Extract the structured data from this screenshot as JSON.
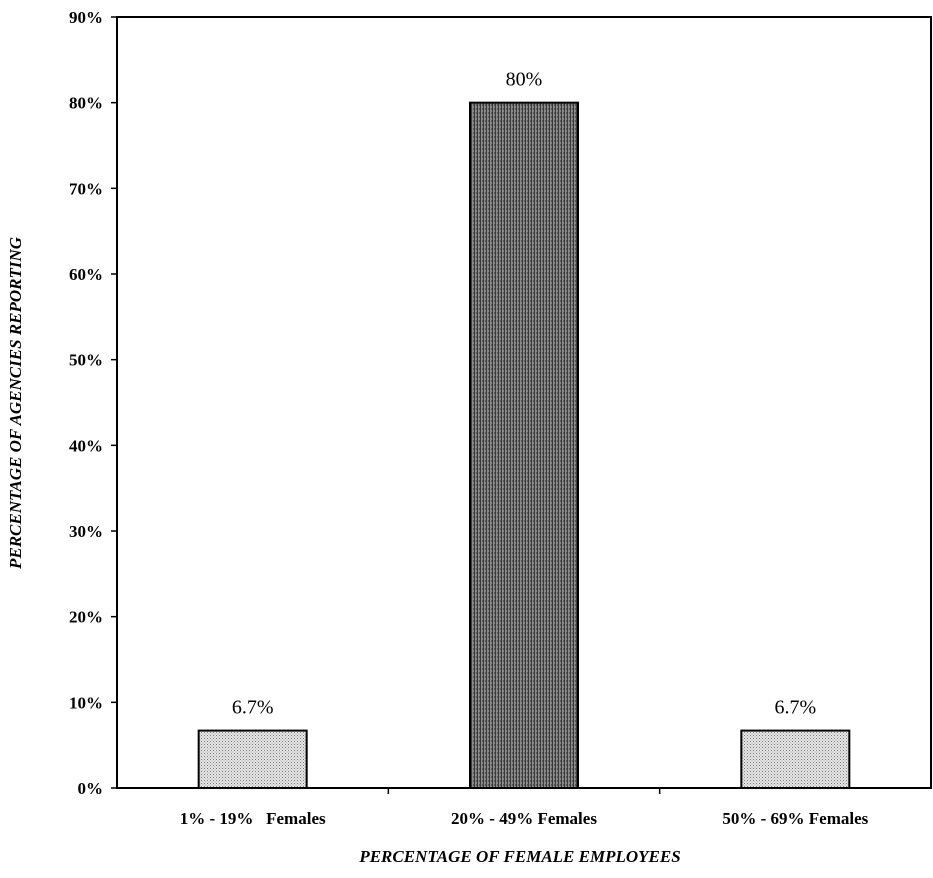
{
  "chart_data": {
    "type": "bar",
    "categories": [
      "1% - 19%   Females",
      "20% - 49% Females",
      "50% - 69% Females"
    ],
    "values": [
      6.7,
      80,
      6.7
    ],
    "data_labels": [
      "6.7%",
      "80%",
      "6.7%"
    ],
    "title": "",
    "xlabel": "PERCENTAGE OF FEMALE EMPLOYEES",
    "ylabel": "PERCENTAGE OF AGENCIES REPORTING",
    "ylim": [
      0,
      90
    ],
    "yticks": [
      0,
      10,
      20,
      30,
      40,
      50,
      60,
      70,
      80,
      90
    ],
    "ytick_labels": [
      "0%",
      "10%",
      "20%",
      "30%",
      "40%",
      "50%",
      "60%",
      "70%",
      "80%",
      "90%"
    ],
    "grid": false,
    "legend": "none",
    "bar_colors": [
      "#d0d0d0",
      "#6e6e6e",
      "#d0d0d0"
    ]
  }
}
